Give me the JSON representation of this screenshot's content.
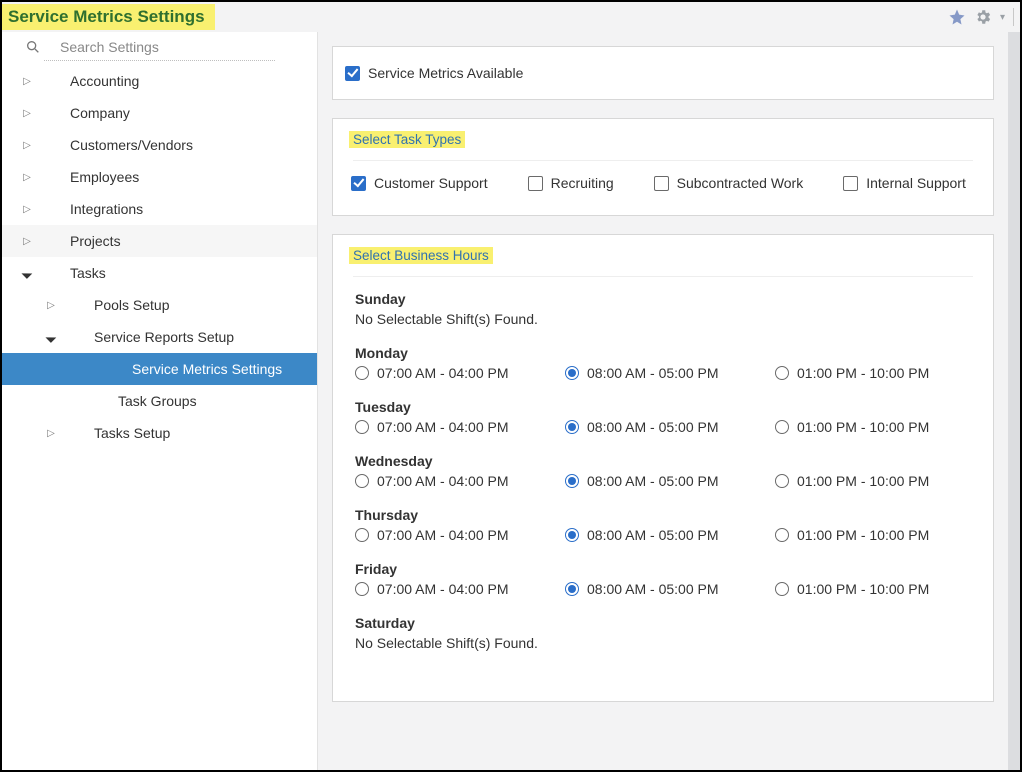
{
  "header": {
    "title": "Service Metrics Settings",
    "highlight_bg": "#f9f070",
    "title_color": "#2f6f2f"
  },
  "search": {
    "placeholder": "Search Settings"
  },
  "sidebar": {
    "items": [
      {
        "label": "Accounting",
        "level": 1,
        "expandable": true,
        "expanded": false
      },
      {
        "label": "Company",
        "level": 1,
        "expandable": true,
        "expanded": false
      },
      {
        "label": "Customers/Vendors",
        "level": 1,
        "expandable": true,
        "expanded": false
      },
      {
        "label": "Employees",
        "level": 1,
        "expandable": true,
        "expanded": false
      },
      {
        "label": "Integrations",
        "level": 1,
        "expandable": true,
        "expanded": false
      },
      {
        "label": "Projects",
        "level": 1,
        "expandable": true,
        "expanded": false,
        "shaded": true
      },
      {
        "label": "Tasks",
        "level": 1,
        "expandable": true,
        "expanded": true
      },
      {
        "label": "Pools Setup",
        "level": 2,
        "expandable": true,
        "expanded": false
      },
      {
        "label": "Service Reports Setup",
        "level": 2,
        "expandable": true,
        "expanded": true
      },
      {
        "label": "Service Metrics Settings",
        "level": 4,
        "selected": true
      },
      {
        "label": "Task Groups",
        "level": 3
      },
      {
        "label": "Tasks Setup",
        "level": 2,
        "expandable": true,
        "expanded": false
      }
    ]
  },
  "available": {
    "label": "Service Metrics Available",
    "checked": true
  },
  "taskTypes": {
    "title": "Select Task Types",
    "items": [
      {
        "label": "Customer Support",
        "checked": true
      },
      {
        "label": "Recruiting",
        "checked": false
      },
      {
        "label": "Subcontracted Work",
        "checked": false
      },
      {
        "label": "Internal Support",
        "checked": false
      }
    ]
  },
  "businessHours": {
    "title": "Select Business Hours",
    "no_shift_text": "No Selectable Shift(s) Found.",
    "days": [
      {
        "name": "Sunday",
        "shifts": []
      },
      {
        "name": "Monday",
        "shifts": [
          {
            "label": "07:00 AM - 04:00 PM",
            "selected": false
          },
          {
            "label": "08:00 AM - 05:00 PM",
            "selected": true
          },
          {
            "label": "01:00 PM - 10:00 PM",
            "selected": false
          }
        ]
      },
      {
        "name": "Tuesday",
        "shifts": [
          {
            "label": "07:00 AM - 04:00 PM",
            "selected": false
          },
          {
            "label": "08:00 AM - 05:00 PM",
            "selected": true
          },
          {
            "label": "01:00 PM - 10:00 PM",
            "selected": false
          }
        ]
      },
      {
        "name": "Wednesday",
        "shifts": [
          {
            "label": "07:00 AM - 04:00 PM",
            "selected": false
          },
          {
            "label": "08:00 AM - 05:00 PM",
            "selected": true
          },
          {
            "label": "01:00 PM - 10:00 PM",
            "selected": false
          }
        ]
      },
      {
        "name": "Thursday",
        "shifts": [
          {
            "label": "07:00 AM - 04:00 PM",
            "selected": false
          },
          {
            "label": "08:00 AM - 05:00 PM",
            "selected": true
          },
          {
            "label": "01:00 PM - 10:00 PM",
            "selected": false
          }
        ]
      },
      {
        "name": "Friday",
        "shifts": [
          {
            "label": "07:00 AM - 04:00 PM",
            "selected": false
          },
          {
            "label": "08:00 AM - 05:00 PM",
            "selected": true
          },
          {
            "label": "01:00 PM - 10:00 PM",
            "selected": false
          }
        ]
      },
      {
        "name": "Saturday",
        "shifts": []
      }
    ]
  },
  "colors": {
    "accent_blue": "#2a6ec9",
    "selected_row": "#3c88c7",
    "panel_border": "#d7d7d7",
    "body_bg": "#f3f3f4"
  }
}
